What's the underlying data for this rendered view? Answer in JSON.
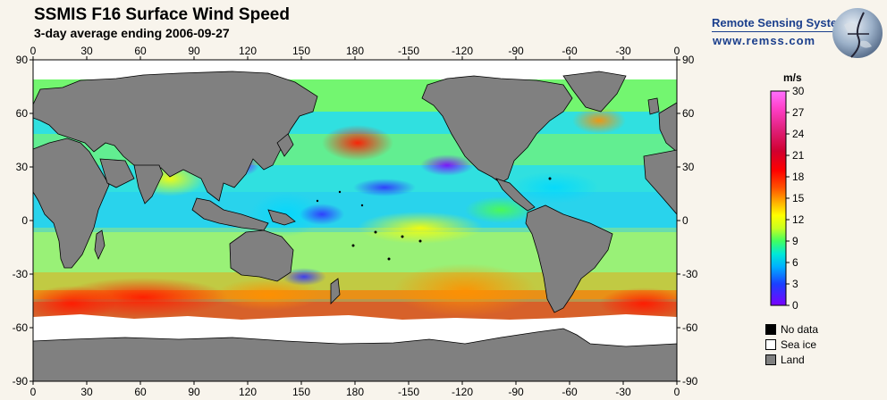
{
  "header": {
    "title": "SSMIS F16 Surface Wind Speed",
    "subtitle": "3-day average ending 2006-09-27"
  },
  "branding": {
    "org_name": "Remote Sensing Systems",
    "url": "www.remss.com"
  },
  "map": {
    "top_lon_labels": [
      "0",
      "30",
      "60",
      "90",
      "120",
      "150",
      "180",
      "-150",
      "-120",
      "-90",
      "-60",
      "-30",
      "0"
    ],
    "bottom_lon_labels": [
      "0",
      "30",
      "60",
      "90",
      "120",
      "150",
      "180",
      "-150",
      "-120",
      "-90",
      "-60",
      "-30",
      "0"
    ],
    "lat_labels": [
      "90",
      "60",
      "30",
      "0",
      "-30",
      "-60",
      "-90"
    ],
    "colors": {
      "land": "#808080",
      "sea_ice": "#ffffff",
      "no_data": "#000000"
    }
  },
  "colorbar": {
    "unit": "m/s",
    "ticks": [
      "30",
      "27",
      "24",
      "21",
      "18",
      "15",
      "12",
      "9",
      "6",
      "3",
      "0"
    ]
  },
  "legend": [
    {
      "label": "No data",
      "color": "#000000"
    },
    {
      "label": "Sea ice",
      "color": "#ffffff"
    },
    {
      "label": "Land",
      "color": "#808080"
    }
  ]
}
